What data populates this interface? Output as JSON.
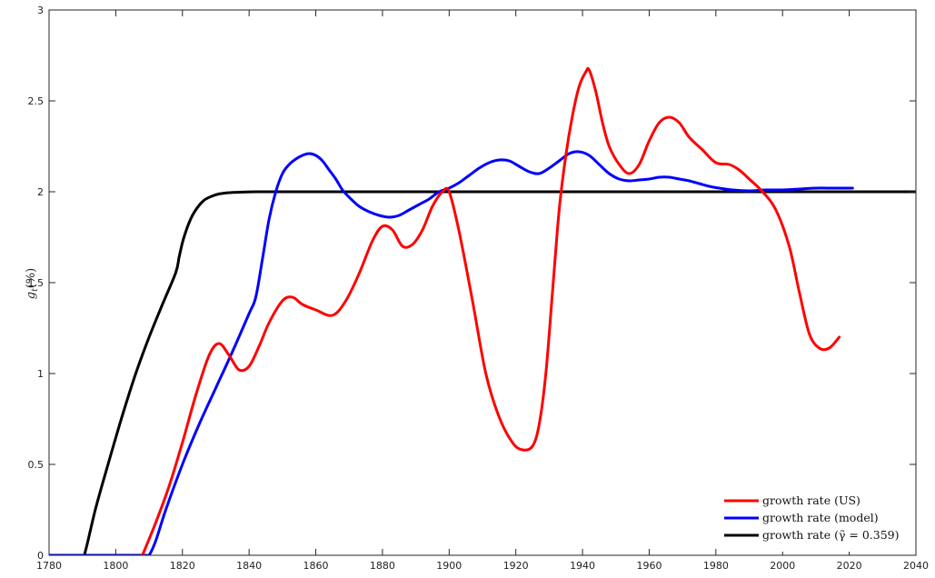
{
  "chart_data": {
    "type": "line",
    "title": "",
    "xlabel": "",
    "ylabel": "g_t(%)",
    "xlim": [
      1780,
      2040
    ],
    "ylim": [
      0,
      3
    ],
    "xticks": [
      1780,
      1800,
      1820,
      1840,
      1860,
      1880,
      1900,
      1920,
      1940,
      1960,
      1980,
      2000,
      2020,
      2040
    ],
    "yticks": [
      0,
      0.5,
      1,
      1.5,
      2,
      2.5,
      3
    ],
    "ytick_labels": [
      "0",
      "0.5",
      "1",
      "1.5",
      "2",
      "2.5",
      "3"
    ],
    "grid": false,
    "legend_position": "bottom-right",
    "series": [
      {
        "name": "growth rate (US)",
        "color": "#ff0000",
        "x": [
          1808,
          1812,
          1816,
          1820,
          1824,
          1828,
          1831,
          1834,
          1837,
          1840,
          1843,
          1846,
          1850,
          1853,
          1856,
          1860,
          1865,
          1869,
          1873,
          1877,
          1880,
          1883,
          1886,
          1889,
          1892,
          1895,
          1898,
          1900,
          1903,
          1907,
          1911,
          1915,
          1919,
          1922,
          1925,
          1927,
          1929,
          1931,
          1933,
          1935,
          1937,
          1939,
          1941,
          1942,
          1944,
          1946,
          1948,
          1951,
          1954,
          1957,
          1960,
          1963,
          1966,
          1969,
          1972,
          1976,
          1980,
          1984,
          1987,
          1990,
          1994,
          1998,
          2002,
          2005,
          2008,
          2011,
          2014,
          2017
        ],
        "y": [
          0.0,
          0.18,
          0.38,
          0.62,
          0.88,
          1.1,
          1.165,
          1.1,
          1.02,
          1.04,
          1.15,
          1.28,
          1.4,
          1.42,
          1.38,
          1.35,
          1.32,
          1.4,
          1.55,
          1.73,
          1.81,
          1.79,
          1.7,
          1.71,
          1.79,
          1.92,
          2.0,
          2.0,
          1.78,
          1.4,
          1.0,
          0.76,
          0.62,
          0.58,
          0.6,
          0.72,
          1.0,
          1.45,
          1.9,
          2.2,
          2.42,
          2.58,
          2.66,
          2.67,
          2.55,
          2.38,
          2.25,
          2.15,
          2.1,
          2.15,
          2.28,
          2.38,
          2.41,
          2.38,
          2.3,
          2.23,
          2.16,
          2.15,
          2.12,
          2.07,
          2.0,
          1.9,
          1.7,
          1.45,
          1.22,
          1.14,
          1.14,
          1.2
        ]
      },
      {
        "name": "growth rate (model)",
        "color": "#0000ff",
        "x": [
          1780,
          1790,
          1800,
          1809,
          1810,
          1812,
          1815,
          1820,
          1825,
          1830,
          1835,
          1840,
          1842,
          1844,
          1846,
          1848,
          1850,
          1852,
          1854,
          1856,
          1858,
          1860,
          1862,
          1864,
          1866,
          1868,
          1870,
          1873,
          1876,
          1879,
          1882,
          1885,
          1888,
          1891,
          1894,
          1897,
          1900,
          1903,
          1906,
          1909,
          1912,
          1915,
          1918,
          1921,
          1924,
          1927,
          1930,
          1933,
          1936,
          1939,
          1942,
          1945,
          1948,
          1951,
          1954,
          1957,
          1960,
          1963,
          1966,
          1969,
          1972,
          1975,
          1978,
          1981,
          1985,
          1990,
          1995,
          2000,
          2005,
          2010,
          2015,
          2021
        ],
        "y": [
          0,
          0,
          0,
          0,
          0.0,
          0.08,
          0.25,
          0.5,
          0.72,
          0.92,
          1.12,
          1.33,
          1.42,
          1.63,
          1.85,
          2.0,
          2.1,
          2.15,
          2.18,
          2.2,
          2.21,
          2.2,
          2.17,
          2.12,
          2.07,
          2.01,
          1.97,
          1.92,
          1.89,
          1.87,
          1.86,
          1.87,
          1.9,
          1.93,
          1.96,
          2.0,
          2.02,
          2.05,
          2.09,
          2.13,
          2.16,
          2.175,
          2.17,
          2.14,
          2.11,
          2.1,
          2.13,
          2.17,
          2.21,
          2.22,
          2.2,
          2.15,
          2.1,
          2.07,
          2.06,
          2.065,
          2.07,
          2.08,
          2.08,
          2.07,
          2.06,
          2.045,
          2.03,
          2.02,
          2.01,
          2.005,
          2.01,
          2.01,
          2.015,
          2.02,
          2.02,
          2.02
        ]
      },
      {
        "name": "growth rate (γ̃ = 0.359)",
        "color": "#000000",
        "x": [
          1780,
          1785,
          1790,
          1791,
          1794,
          1798,
          1802,
          1806,
          1810,
          1814,
          1818,
          1819,
          1820,
          1821,
          1822,
          1823,
          1824,
          1825,
          1826,
          1827,
          1829,
          1831,
          1834,
          1838,
          1842,
          1850,
          1860,
          1880,
          1900,
          1950,
          2000,
          2040
        ],
        "y": [
          0,
          0,
          0,
          0.03,
          0.26,
          0.52,
          0.77,
          1.0,
          1.2,
          1.38,
          1.555,
          1.64,
          1.72,
          1.78,
          1.83,
          1.87,
          1.9,
          1.925,
          1.945,
          1.96,
          1.977,
          1.988,
          1.995,
          1.998,
          2.0,
          2.0,
          2.0,
          2.0,
          2.0,
          2.0,
          2.0,
          2.0
        ]
      }
    ]
  }
}
